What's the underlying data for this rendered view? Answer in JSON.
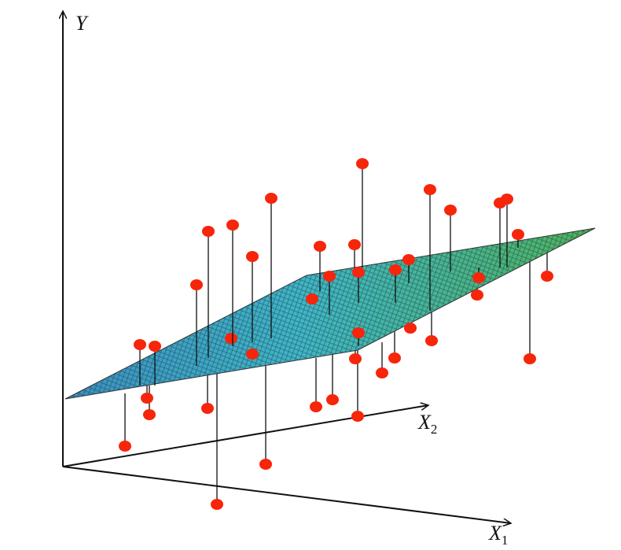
{
  "axes": {
    "y": {
      "letter": "Y"
    },
    "x2": {
      "letter": "X",
      "sub": "2"
    },
    "x1": {
      "letter": "X",
      "sub": "1"
    }
  }
}
